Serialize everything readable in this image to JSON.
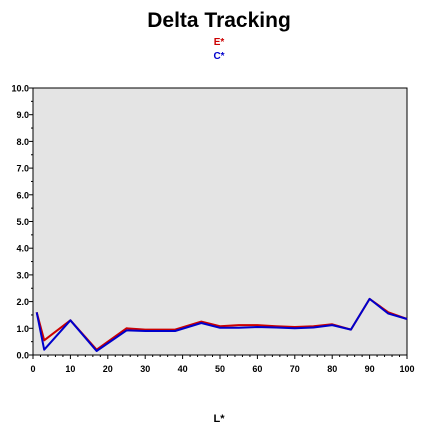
{
  "chart_data": {
    "type": "line",
    "title": "Delta Tracking",
    "xlabel": "L*",
    "ylabel": "",
    "xlim": [
      0,
      100
    ],
    "ylim": [
      0,
      10
    ],
    "grid": false,
    "legend_placement": "top-center",
    "plot_background": "#e4e4e4",
    "x_ticks": [
      "0",
      "10",
      "20",
      "30",
      "40",
      "50",
      "60",
      "70",
      "80",
      "90",
      "100"
    ],
    "y_ticks": [
      "0.0",
      "1.0",
      "2.0",
      "3.0",
      "4.0",
      "5.0",
      "6.0",
      "7.0",
      "8.0",
      "9.0",
      "10.0"
    ],
    "series": [
      {
        "name": "E*",
        "color": "#cc0000",
        "x": [
          1,
          3,
          10,
          17,
          25,
          30,
          38,
          45,
          50,
          55,
          60,
          65,
          70,
          75,
          80,
          85,
          90,
          95,
          100
        ],
        "y": [
          1.6,
          0.55,
          1.3,
          0.2,
          1.0,
          0.95,
          0.95,
          1.25,
          1.08,
          1.12,
          1.12,
          1.08,
          1.05,
          1.08,
          1.15,
          0.95,
          2.1,
          1.6,
          1.35
        ]
      },
      {
        "name": "C*",
        "color": "#0000cc",
        "x": [
          1,
          3,
          10,
          17,
          25,
          30,
          38,
          45,
          50,
          55,
          60,
          65,
          70,
          75,
          80,
          85,
          90,
          95,
          100
        ],
        "y": [
          1.6,
          0.2,
          1.3,
          0.15,
          0.92,
          0.9,
          0.9,
          1.2,
          1.02,
          1.02,
          1.05,
          1.03,
          1.0,
          1.03,
          1.12,
          0.95,
          2.1,
          1.55,
          1.35
        ]
      }
    ]
  }
}
